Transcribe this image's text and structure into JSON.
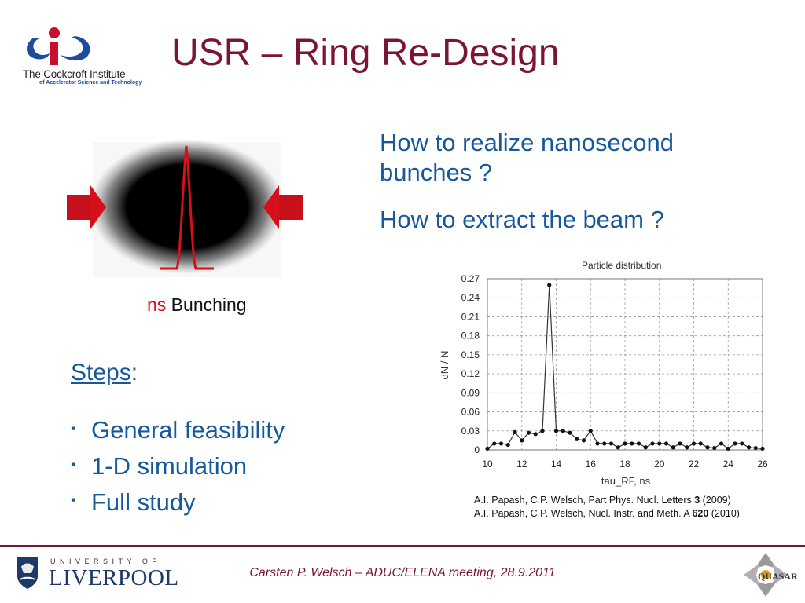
{
  "slide": {
    "title": "USR – Ring Re-Design",
    "question1": "How to realize nanosecond bunches ?",
    "question2": "How to extract the beam ?",
    "caption_ns": "ns",
    "caption_rest": " Bunching",
    "steps_heading": "Steps",
    "steps_colon": ":",
    "steps": [
      "General feasibility",
      "1-D simulation",
      "Full study"
    ],
    "bullet": "▪",
    "refs": [
      {
        "pre": "A.I. Papash, C.P. Welsch, Part Phys. Nucl. Letters ",
        "bold": "3",
        "post": " (2009)"
      },
      {
        "pre": "A.I. Papash, C.P. Welsch, Nucl. Instr. and Meth. A ",
        "bold": "620",
        "post": " (2010)"
      }
    ],
    "footer": "Carsten P. Welsch – ADUC/ELENA meeting, 28.9.2011"
  },
  "logos": {
    "cockcroft_name": "The Cockcroft Institute",
    "cockcroft_sub": "of Accelerator Science and Technology",
    "uol_top": "UNIVERSITY OF",
    "uol_name": "LIVERPOOL",
    "quasar": "QUASAR"
  },
  "colors": {
    "title": "#7a1532",
    "text_blue": "#17589a",
    "accent_red": "#d6101a",
    "plot_line": "#333333"
  },
  "chart_data": {
    "type": "line",
    "title": "Particle distribution",
    "xlabel": "tau_RF, ns",
    "ylabel": "dN / N",
    "xlim": [
      10,
      26
    ],
    "ylim": [
      0,
      0.27
    ],
    "xticks": [
      10,
      12,
      14,
      16,
      18,
      20,
      22,
      24,
      26
    ],
    "yticks": [
      0,
      0.03,
      0.06,
      0.09,
      0.12,
      0.15,
      0.18,
      0.21,
      0.24,
      0.27
    ],
    "grid": true,
    "series": [
      {
        "x": [
          10,
          10.4,
          10.8,
          11.2,
          11.6,
          12.0,
          12.4,
          12.8,
          13.2,
          13.6,
          14.0,
          14.4,
          14.8,
          15.2,
          15.6,
          16.0,
          16.4,
          16.8,
          17.2,
          17.6,
          18.0,
          18.4,
          18.8,
          19.2,
          19.6,
          20.0,
          20.4,
          20.8,
          21.2,
          21.6,
          22.0,
          22.4,
          22.8,
          23.2,
          23.6,
          24.0,
          24.4,
          24.8,
          25.2,
          25.6,
          26.0
        ],
        "y": [
          0.002,
          0.01,
          0.01,
          0.008,
          0.028,
          0.015,
          0.027,
          0.025,
          0.03,
          0.26,
          0.03,
          0.03,
          0.027,
          0.017,
          0.015,
          0.03,
          0.01,
          0.01,
          0.01,
          0.004,
          0.01,
          0.01,
          0.01,
          0.004,
          0.01,
          0.01,
          0.01,
          0.004,
          0.01,
          0.004,
          0.01,
          0.01,
          0.004,
          0.003,
          0.01,
          0.002,
          0.01,
          0.01,
          0.004,
          0.003,
          0.002
        ]
      }
    ]
  }
}
